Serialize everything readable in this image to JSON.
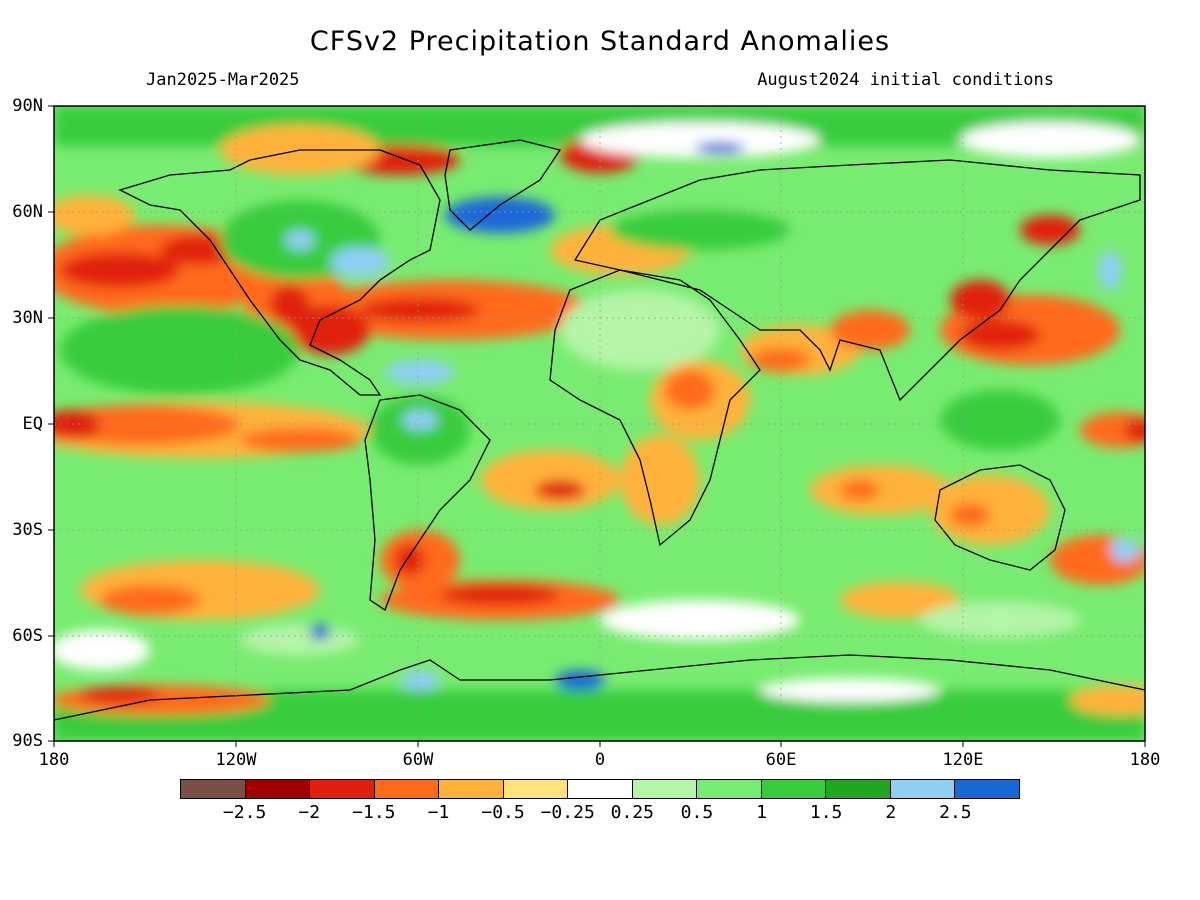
{
  "title": "CFSv2 Precipitation Standard Anomalies",
  "period": "Jan2025-Mar2025",
  "initial_conditions": "August2024 initial conditions",
  "lat_ticks": [
    "90N",
    "60N",
    "30N",
    "EQ",
    "30S",
    "60S",
    "90S"
  ],
  "lon_ticks": [
    "180",
    "120W",
    "60W",
    "0",
    "60E",
    "120E",
    "180"
  ],
  "legend": {
    "colors": [
      "#7b4f45",
      "#a00000",
      "#e0200f",
      "#ff6a1a",
      "#ffb23a",
      "#ffe27a",
      "#ffffff",
      "#b4f5a8",
      "#78ec70",
      "#38cc3c",
      "#1fa81f",
      "#8fcff5",
      "#1a68d8"
    ],
    "labels": [
      "-2.5",
      "-2",
      "-1.5",
      "-1",
      "-0.5",
      "-0.25",
      "0.25",
      "0.5",
      "1",
      "1.5",
      "2",
      "2.5"
    ]
  },
  "colors": {
    "dry_strong": "#e0200f",
    "dry_moderate": "#ff6a1a",
    "dry_weak": "#ffb23a",
    "neutral": "#ffffff",
    "wet_weak": "#78ec70",
    "wet_moderate": "#38cc3c",
    "wet_strong": "#8fcff5"
  }
}
